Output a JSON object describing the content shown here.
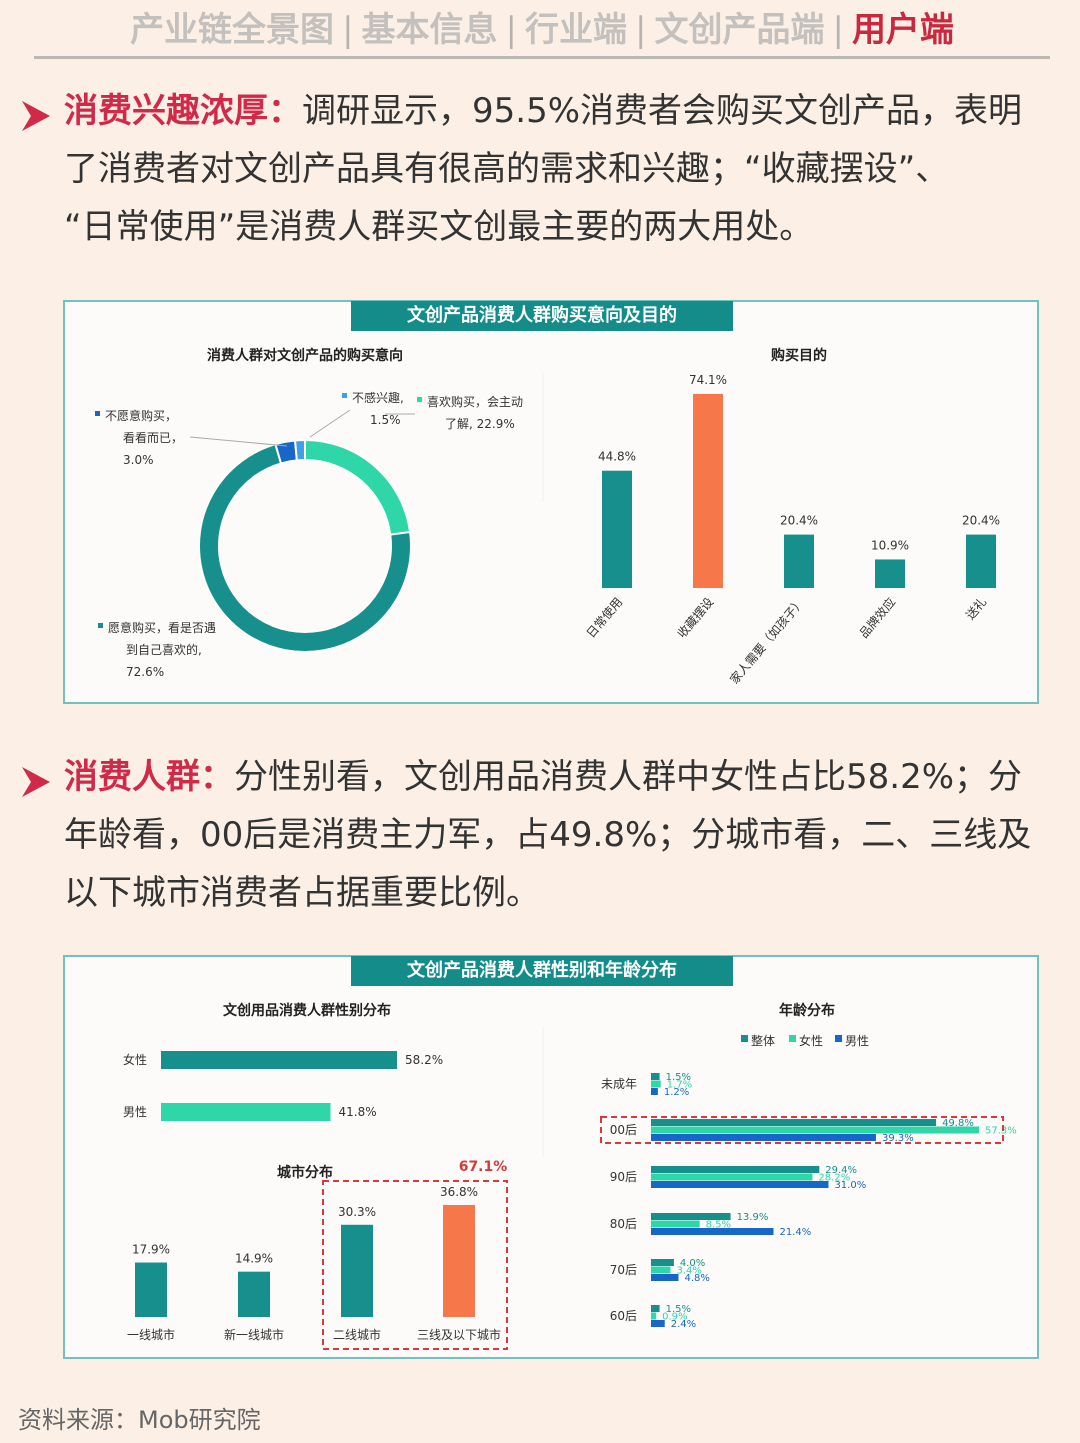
{
  "nav": {
    "items": [
      "产业链全景图",
      "基本信息",
      "行业端",
      "文创产品端",
      "用户端"
    ],
    "active_index": 4,
    "separator": "|"
  },
  "section1": {
    "highlight": "消费兴趣浓厚：",
    "line1": "调研显示，95.5%消费者会购买文创产品，表明",
    "line2": "了消费者对文创产品具有很高的需求和兴趣；“收藏摆设”、",
    "line3": "“日常使用”是消费人群买文创最主要的两大用处。"
  },
  "panel1": {
    "title": "文创产品消费人群购买意向及目的",
    "donut_title": "消费人群对文创产品的购买意向",
    "bar_title": "购买目的"
  },
  "section2": {
    "highlight": "消费人群：",
    "line1": "分性别看，文创用品消费人群中女性占比58.2%；分",
    "line2": "年龄看，00后是消费主力军，占49.8%；分城市看，二、三线及",
    "line3": "以下城市消费者占据重要比例。"
  },
  "panel2": {
    "title": "文创产品消费人群性别和年龄分布",
    "gender_title": "文创用品消费人群性别分布",
    "city_title": "城市分布",
    "city_highlight": "67.1%",
    "age_title": "年龄分布"
  },
  "source": "资料来源：Mob研究院",
  "colors": {
    "teal": "#168f8d",
    "mint": "#2fd6a8",
    "blue": "#1866c8",
    "orange": "#f6784a",
    "red": "#d63a3a",
    "accent": "#d12a48"
  },
  "chart_data": [
    {
      "type": "pie",
      "title": "消费人群对文创产品的购买意向",
      "slices": [
        {
          "label": "喜欢购买，会主动了解",
          "value": 22.9,
          "color": "#2fd6a8"
        },
        {
          "label": "愿意购买，看是否遇到自己喜欢的",
          "value": 72.6,
          "color": "#168f8d"
        },
        {
          "label": "不愿意购买，看看而已",
          "value": 3.0,
          "color": "#1866c8"
        },
        {
          "label": "不感兴趣",
          "value": 1.5,
          "color": "#3fa0e8"
        }
      ],
      "labels_display": {
        "s0": [
          "喜欢购买，会主动",
          "了解, 22.9%"
        ],
        "s1": [
          "愿意购买，看是否遇",
          "到自己喜欢的,",
          "72.6%"
        ],
        "s2": [
          "不愿意购买，",
          "看看而已，",
          "3.0%"
        ],
        "s3": [
          "不感兴趣,",
          "1.5%"
        ]
      }
    },
    {
      "type": "bar",
      "title": "购买目的",
      "categories": [
        "日常使用",
        "收藏摆设",
        "家人需要（如孩子）",
        "品牌效应",
        "送礼"
      ],
      "values": [
        44.8,
        74.1,
        20.4,
        10.9,
        20.4
      ],
      "value_labels": [
        "44.8%",
        "74.1%",
        "20.4%",
        "10.9%",
        "20.4%"
      ],
      "highlight_index": 1
    },
    {
      "type": "bar",
      "title": "文创用品消费人群性别分布",
      "orientation": "horizontal",
      "categories": [
        "女性",
        "男性"
      ],
      "values": [
        58.2,
        41.8
      ],
      "value_labels": [
        "58.2%",
        "41.8%"
      ]
    },
    {
      "type": "bar",
      "title": "城市分布",
      "categories": [
        "一线城市",
        "新一线城市",
        "二线城市",
        "三线及以下城市"
      ],
      "values": [
        17.9,
        14.9,
        30.3,
        36.8
      ],
      "value_labels": [
        "17.9%",
        "14.9%",
        "30.3%",
        "36.8%"
      ],
      "highlight_index": 3,
      "boxed_indices": [
        2,
        3
      ]
    },
    {
      "type": "bar",
      "title": "年龄分布",
      "orientation": "horizontal",
      "categories": [
        "未成年",
        "00后",
        "90后",
        "80后",
        "70后",
        "60后"
      ],
      "series": [
        {
          "name": "整体",
          "values": [
            1.5,
            49.8,
            29.4,
            13.9,
            4.0,
            1.5
          ],
          "labels": [
            "1.5%",
            "49.8%",
            "29.4%",
            "13.9%",
            "4.0%",
            "1.5%"
          ]
        },
        {
          "name": "女性",
          "values": [
            1.7,
            57.3,
            28.2,
            8.5,
            3.4,
            0.9
          ],
          "labels": [
            "1.7%",
            "57.3%",
            "28.2%",
            "8.5%",
            "3.4%",
            "0.9%"
          ]
        },
        {
          "name": "男性",
          "values": [
            1.2,
            39.3,
            31.0,
            21.4,
            4.8,
            2.4
          ],
          "labels": [
            "1.2%",
            "39.3%",
            "31.0%",
            "21.4%",
            "4.8%",
            "2.4%"
          ]
        }
      ],
      "highlight_index": 1
    }
  ]
}
